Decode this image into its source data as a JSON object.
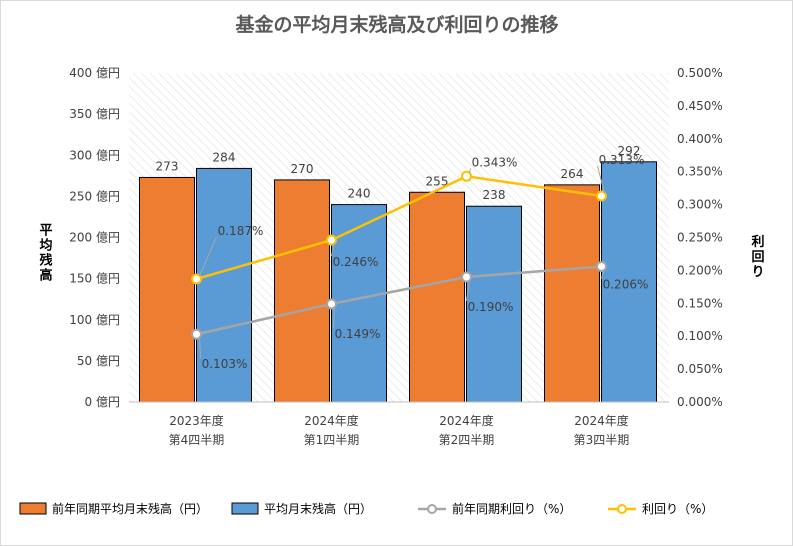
{
  "chart_data": {
    "type": "bar+line",
    "title": "基金の平均月末残高及び利回りの推移",
    "categories": [
      [
        "2023年度",
        "第4四半期"
      ],
      [
        "2024年度",
        "第1四半期"
      ],
      [
        "2024年度",
        "第2四半期"
      ],
      [
        "2024年度",
        "第3四半期"
      ]
    ],
    "y_left": {
      "label": "平均残高",
      "min": 0,
      "max": 400,
      "step": 50,
      "ticks": [
        "0 億円",
        "50 億円",
        "100 億円",
        "150 億円",
        "200 億円",
        "250 億円",
        "300 億円",
        "350 億円",
        "400 億円"
      ]
    },
    "y_right": {
      "label": "利回り",
      "min": 0,
      "max": 0.5,
      "step": 0.05,
      "ticks": [
        "0.000%",
        "0.050%",
        "0.100%",
        "0.150%",
        "0.200%",
        "0.250%",
        "0.300%",
        "0.350%",
        "0.400%",
        "0.450%",
        "0.500%"
      ]
    },
    "bar_series": [
      {
        "name": "前年同期平均月末残高（円）",
        "color": "#ed7d31",
        "values": [
          273,
          270,
          255,
          264
        ],
        "labels": [
          "273",
          "270",
          "255",
          "264"
        ]
      },
      {
        "name": "平均月末残高（円）",
        "color": "#5b9bd5",
        "values": [
          284,
          240,
          238,
          292
        ],
        "labels": [
          "284",
          "240",
          "238",
          "292"
        ]
      }
    ],
    "line_series": [
      {
        "name": "前年同期利回り（%）",
        "color": "#a5a5a5",
        "values": [
          0.103,
          0.149,
          0.19,
          0.206
        ],
        "labels": [
          "0.103%",
          "0.149%",
          "0.190%",
          "0.206%"
        ]
      },
      {
        "name": "利回り（%）",
        "color": "#ffc000",
        "values": [
          0.187,
          0.246,
          0.343,
          0.313
        ],
        "labels": [
          "0.187%",
          "0.246%",
          "0.343%",
          "0.313%"
        ]
      }
    ],
    "legend": "bottom",
    "plot_area_pattern": "diagonal-hatch",
    "grid": false
  }
}
